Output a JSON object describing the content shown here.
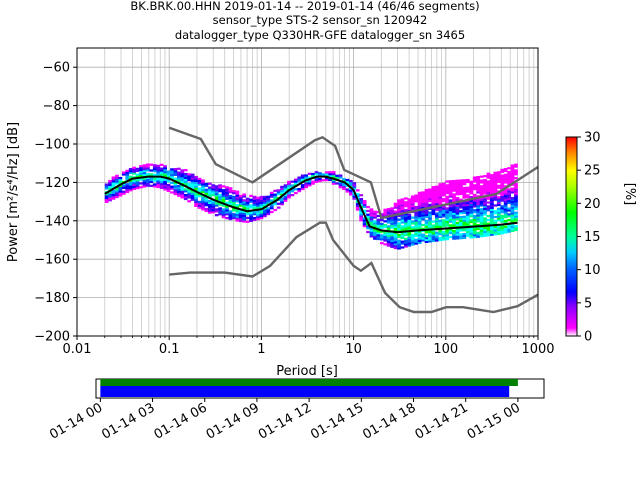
{
  "title_lines": [
    "BK.BRK.00.HHN   2019-01-14 -- 2019-01-14  (46/46 segments)",
    "sensor_type STS-2 sensor_sn 120942",
    "datalogger_type Q330HR-GFE datalogger_sn 3465"
  ],
  "chart_data": {
    "type": "heatmap",
    "xlabel": "Period [s]",
    "ylabel": "Power [m²/s⁴/Hz] [dB]",
    "xscale": "log",
    "xlim": [
      0.01,
      1000
    ],
    "ylim": [
      -200,
      -50
    ],
    "xticks": [
      0.01,
      0.1,
      1,
      10,
      100,
      1000
    ],
    "xtick_labels": [
      "0.01",
      "0.1",
      "1",
      "10",
      "100",
      "1000"
    ],
    "yticks": [
      -200,
      -180,
      -160,
      -140,
      -120,
      -100,
      -80,
      -60
    ],
    "grid": true,
    "colorbar": {
      "label": "[%]",
      "min": 0,
      "max": 30,
      "ticks": [
        0,
        5,
        10,
        15,
        20,
        25,
        30
      ]
    },
    "noise_model_high": {
      "x": [
        0.1,
        0.22,
        0.32,
        0.8,
        3.8,
        4.6,
        6.3,
        7.9,
        15.4,
        20,
        354.8,
        1000
      ],
      "y": [
        -91.5,
        -97.4,
        -110.5,
        -120,
        -98,
        -96.5,
        -101,
        -113.5,
        -120,
        -138.5,
        -126,
        -112
      ]
    },
    "noise_model_low": {
      "x": [
        0.1,
        0.17,
        0.4,
        0.8,
        1.24,
        2.4,
        4.3,
        5,
        6,
        10,
        12,
        15.6,
        21.9,
        31.6,
        45,
        70,
        101,
        154,
        328,
        600,
        1000
      ],
      "y": [
        -168,
        -167,
        -167,
        -169,
        -163.5,
        -148.5,
        -141,
        -141,
        -150,
        -163.5,
        -166,
        -162,
        -177.5,
        -185,
        -187.5,
        -187.5,
        -185,
        -185,
        -187.5,
        -184.5,
        -178.5
      ]
    },
    "mean_curve": {
      "x": [
        0.02,
        0.03,
        0.04,
        0.06,
        0.08,
        0.1,
        0.15,
        0.2,
        0.3,
        0.5,
        0.7,
        1.0,
        1.5,
        2.0,
        3.0,
        4.0,
        5.0,
        6.0,
        8.0,
        10.0,
        12.0,
        15.0,
        20.0,
        30.0,
        50.0,
        100.0,
        200.0,
        400.0,
        600.0
      ],
      "y": [
        -126,
        -121,
        -118,
        -117,
        -117,
        -118,
        -122,
        -125,
        -129,
        -133,
        -135,
        -134,
        -129,
        -124,
        -119,
        -117,
        -117,
        -118,
        -120,
        -124,
        -133,
        -143,
        -145,
        -146,
        -145,
        -144,
        -143,
        -142,
        -141
      ]
    },
    "psd_band": {
      "x": [
        0.02,
        0.03,
        0.04,
        0.06,
        0.08,
        0.1,
        0.15,
        0.2,
        0.3,
        0.5,
        0.7,
        1.0,
        1.5,
        2.0,
        3.0,
        4.0,
        5.0,
        6.0,
        8.0,
        10.0,
        12.0,
        15.0,
        20.0,
        30.0,
        50.0,
        100.0,
        200.0,
        400.0,
        600.0
      ],
      "upper": [
        -121,
        -115,
        -112,
        -111,
        -111,
        -112,
        -114,
        -117,
        -121,
        -124,
        -127,
        -128,
        -124,
        -120,
        -116,
        -115,
        -115,
        -115,
        -117,
        -120,
        -127,
        -134,
        -136,
        -130,
        -126,
        -120,
        -118,
        -114,
        -110
      ],
      "lower": [
        -131,
        -127,
        -124,
        -122,
        -123,
        -125,
        -129,
        -133,
        -137,
        -140,
        -141,
        -139,
        -134,
        -128,
        -123,
        -120,
        -119,
        -121,
        -124,
        -128,
        -140,
        -148,
        -152,
        -155,
        -152,
        -150,
        -149,
        -147,
        -145
      ]
    }
  },
  "timeline": {
    "xtick_labels": [
      "01-14 00",
      "01-14 03",
      "01-14 06",
      "01-14 09",
      "01-14 12",
      "01-14 15",
      "01-14 18",
      "01-14 21",
      "01-15 00"
    ],
    "range_hours": [
      -0.25,
      25.5
    ],
    "bar_green": [
      0,
      24.0
    ],
    "bar_blue": [
      0,
      23.5
    ],
    "colors": {
      "green": "#008000",
      "blue": "#0000ff"
    }
  }
}
